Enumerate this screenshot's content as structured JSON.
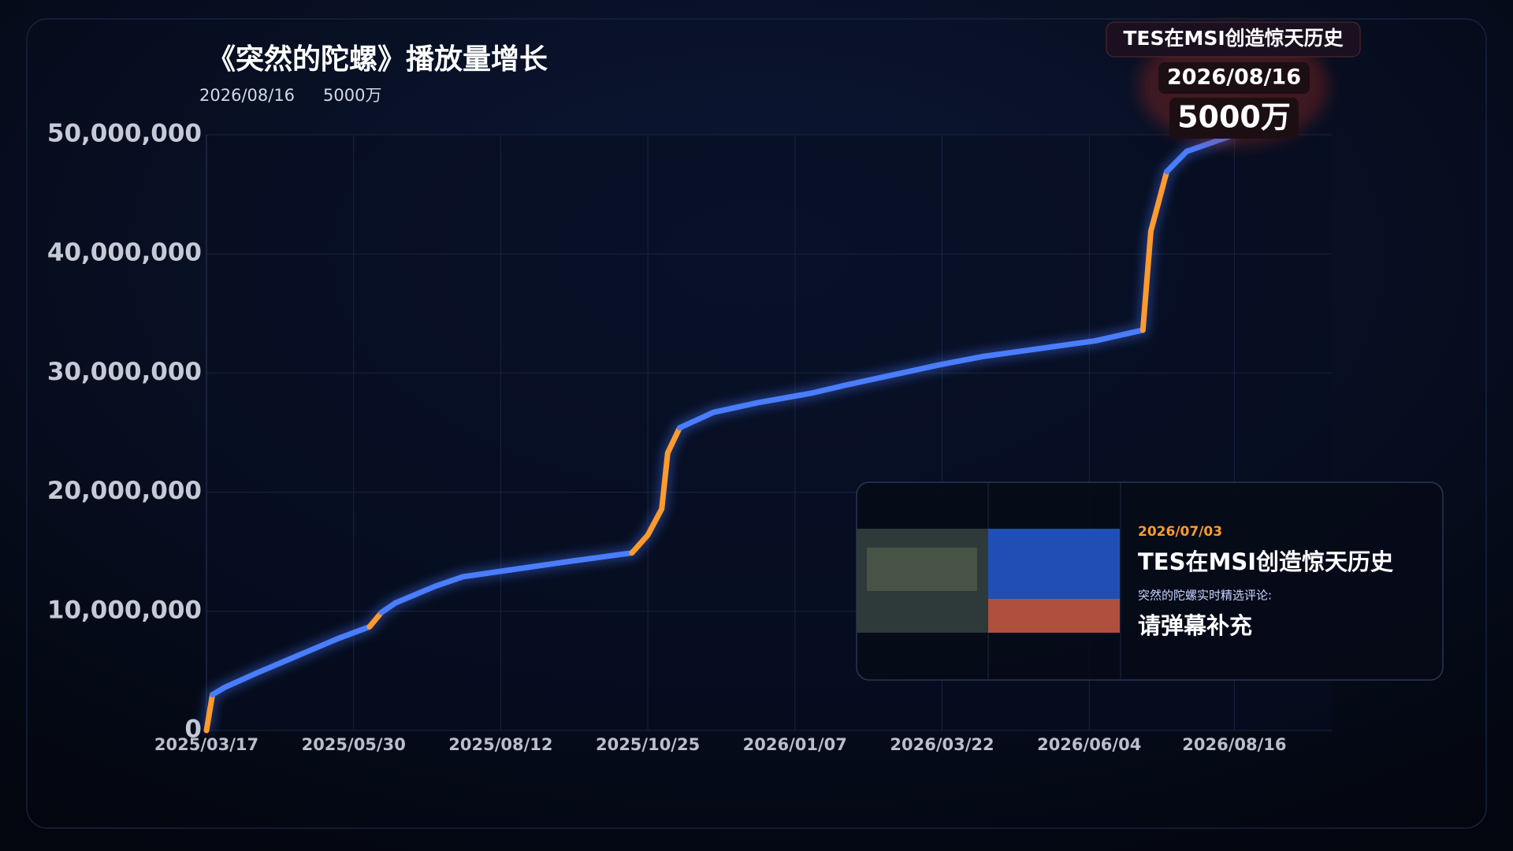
{
  "chart_data": {
    "type": "line",
    "title": "《突然的陀螺》播放量增长",
    "subtitle_date": "2026/08/16",
    "subtitle_value": "5000万",
    "x": [
      "2025/03/17",
      "2025/03/20",
      "2025/03/26",
      "2025/04/11",
      "2025/04/28",
      "2025/05/22",
      "2025/06/07",
      "2025/06/13",
      "2025/06/20",
      "2025/07/10",
      "2025/07/24",
      "2025/09/16",
      "2025/10/17",
      "2025/10/25",
      "2025/11/01",
      "2025/11/04",
      "2025/11/10",
      "2025/11/27",
      "2025/12/19",
      "2026/01/15",
      "2026/02/02",
      "2026/03/21",
      "2026/04/12",
      "2026/06/07",
      "2026/07/01",
      "2026/07/05",
      "2026/07/13",
      "2026/07/23",
      "2026/08/16"
    ],
    "series": [
      {
        "color": "#4a7dff",
        "values": [
          0,
          3000000,
          3600000,
          4800000,
          6000000,
          7700000,
          8700000,
          9900000,
          10700000,
          12100000,
          12900000,
          14200000,
          14900000,
          16400000,
          18600000,
          23300000,
          25400000,
          26700000,
          27500000,
          28300000,
          29000000,
          30700000,
          31400000,
          32700000,
          33600000,
          41900000,
          46900000,
          48600000,
          50000000
        ],
        "segment_colors": [
          "#ff9a2e",
          "#4a7dff",
          "#4a7dff",
          "#4a7dff",
          "#4a7dff",
          "#4a7dff",
          "#ff9a2e",
          "#4a7dff",
          "#4a7dff",
          "#4a7dff",
          "#4a7dff",
          "#4a7dff",
          "#ff9a2e",
          "#ff9a2e",
          "#ff9a2e",
          "#ff9a2e",
          "#4a7dff",
          "#4a7dff",
          "#4a7dff",
          "#4a7dff",
          "#4a7dff",
          "#4a7dff",
          "#4a7dff",
          "#4a7dff",
          "#ff9a2e",
          "#ff9a2e",
          "#4a7dff",
          "#4a7dff"
        ]
      }
    ],
    "xlim": [
      "2025/03/17",
      "2026/10/04"
    ],
    "xticks": [
      "2025/03/17",
      "2025/05/30",
      "2025/08/12",
      "2025/10/25",
      "2026/01/07",
      "2026/03/22",
      "2026/06/04",
      "2026/08/16"
    ],
    "ylim": [
      0,
      50000000
    ],
    "yticks": [
      0,
      {
        "value": 10000000,
        "label": "10,000,000"
      },
      {
        "value": 20000000,
        "label": "20,000,000"
      },
      {
        "value": 30000000,
        "label": "30,000,000"
      },
      {
        "value": 40000000,
        "label": "40,000,000"
      },
      {
        "value": 50000000,
        "label": "50,000,000"
      }
    ],
    "grid": true,
    "annotation": {
      "title": "TES在MSI创造惊天历史",
      "date": "2026/08/16",
      "value": "5000万"
    },
    "event_card": {
      "date": "2026/07/03",
      "title": "TES在MSI创造惊天历史",
      "subtitle": "突然的陀螺实时精选评论:",
      "comment": "请弹幕补充"
    }
  }
}
